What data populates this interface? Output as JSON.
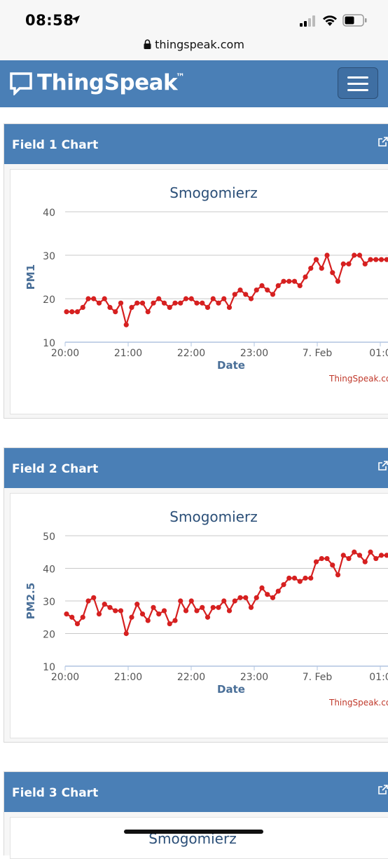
{
  "status_bar": {
    "time": "08:58"
  },
  "browser": {
    "url": "thingspeak.com"
  },
  "navbar": {
    "brand": "ThingSpeak",
    "trademark": "™"
  },
  "panels": [
    {
      "title": "Field 1 Chart",
      "chart_data": {
        "type": "line",
        "title": "Smogomierz",
        "xlabel": "Date",
        "ylabel": "PM1",
        "ylim": [
          10,
          40
        ],
        "yticks": [
          "10",
          "20",
          "30",
          "40"
        ],
        "xticks": [
          "20:00",
          "21:00",
          "22:00",
          "23:00",
          "7. Feb",
          "01:0"
        ],
        "credit": "ThingSpeak.co",
        "grid": true,
        "series": [
          {
            "color": "#d62020",
            "values": [
              17,
              17,
              17,
              18,
              20,
              20,
              19,
              20,
              18,
              17,
              19,
              14,
              18,
              19,
              19,
              17,
              19,
              20,
              19,
              18,
              19,
              19,
              20,
              20,
              19,
              19,
              18,
              20,
              19,
              20,
              18,
              21,
              22,
              21,
              20,
              22,
              23,
              22,
              21,
              23,
              24,
              24,
              24,
              23,
              25,
              27,
              29,
              27,
              30,
              26,
              24,
              28,
              28,
              30,
              30,
              28,
              29,
              29,
              29,
              29
            ]
          }
        ]
      }
    },
    {
      "title": "Field 2 Chart",
      "chart_data": {
        "type": "line",
        "title": "Smogomierz",
        "xlabel": "Date",
        "ylabel": "PM2.5",
        "ylim": [
          10,
          50
        ],
        "yticks": [
          "10",
          "20",
          "30",
          "40",
          "50"
        ],
        "xticks": [
          "20:00",
          "21:00",
          "22:00",
          "23:00",
          "7. Feb",
          "01:0"
        ],
        "credit": "ThingSpeak.co",
        "grid": true,
        "series": [
          {
            "color": "#d62020",
            "values": [
              26,
              25,
              23,
              25,
              30,
              31,
              26,
              29,
              28,
              27,
              27,
              20,
              25,
              29,
              26,
              24,
              28,
              26,
              27,
              23,
              24,
              30,
              27,
              30,
              27,
              28,
              25,
              28,
              28,
              30,
              27,
              30,
              31,
              31,
              28,
              31,
              34,
              32,
              31,
              33,
              35,
              37,
              37,
              36,
              37,
              37,
              42,
              43,
              43,
              41,
              38,
              44,
              43,
              45,
              44,
              42,
              45,
              43,
              44,
              44
            ]
          }
        ]
      }
    },
    {
      "title": "Field 3 Chart",
      "chart_data": {
        "type": "line",
        "title": "Smogomierz"
      }
    }
  ]
}
